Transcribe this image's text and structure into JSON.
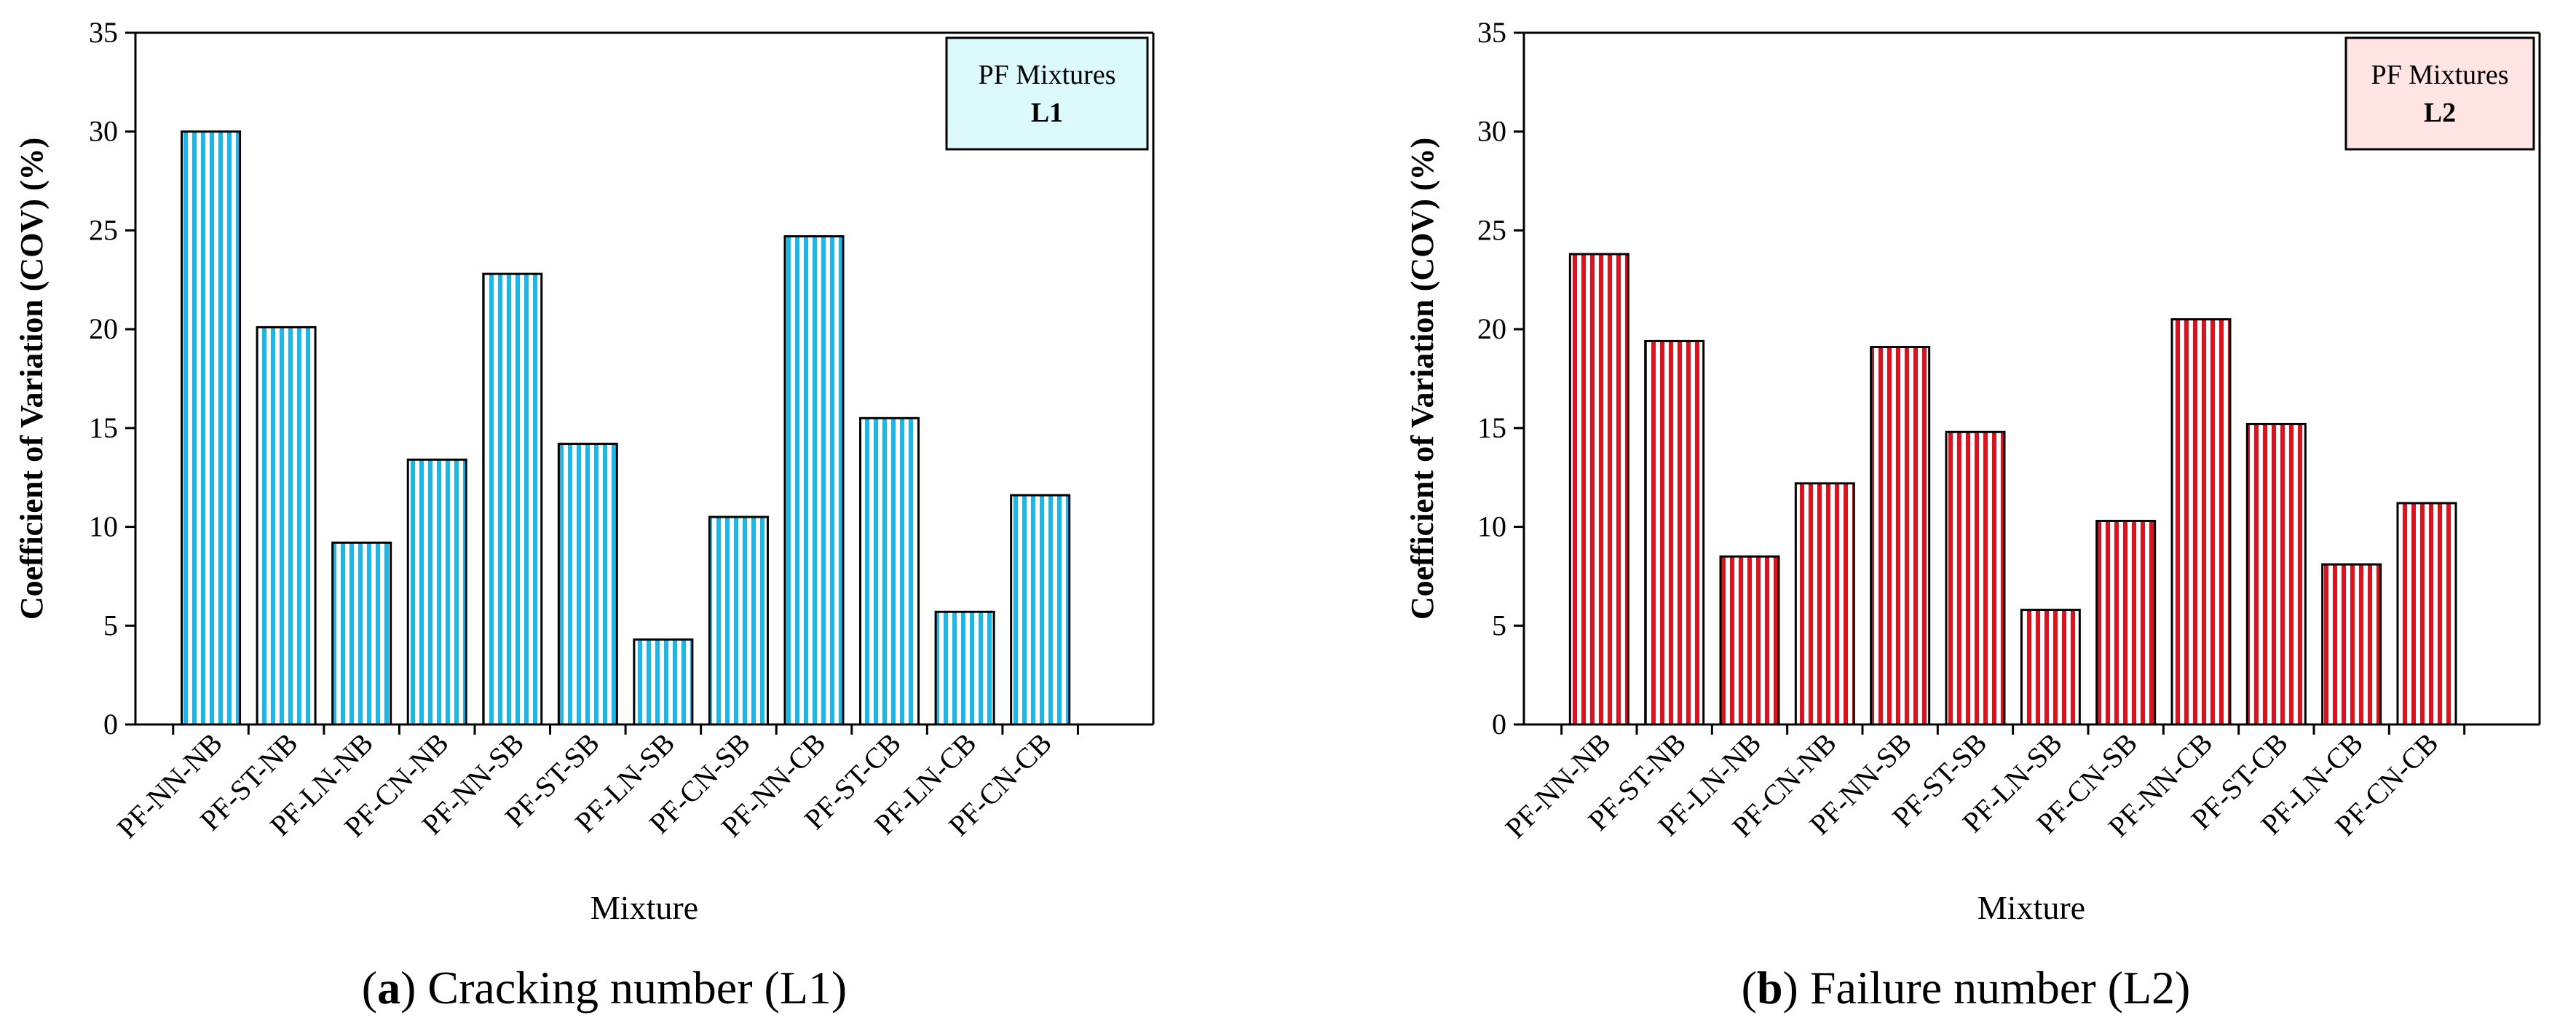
{
  "chart_data": [
    {
      "type": "bar",
      "panel": "a",
      "caption_letter": "a",
      "caption_text": "Cracking number (L1)",
      "legend_title": "PF Mixtures",
      "legend_label": "L1",
      "xlabel": "Mixture",
      "ylabel": "Coefficient of Variation (COV) (%)",
      "ylim": [
        0,
        35
      ],
      "yticks": [
        0,
        5,
        10,
        15,
        20,
        25,
        30,
        35
      ],
      "categories": [
        "PF-NN-NB",
        "PF-ST-NB",
        "PF-LN-NB",
        "PF-CN-NB",
        "PF-NN-SB",
        "PF-ST-SB",
        "PF-LN-SB",
        "PF-CN-SB",
        "PF-NN-CB",
        "PF-ST-CB",
        "PF-LN-CB",
        "PF-CN-CB"
      ],
      "values": [
        30.0,
        20.1,
        9.2,
        13.4,
        22.8,
        14.2,
        4.3,
        10.5,
        24.7,
        15.5,
        5.7,
        11.6
      ],
      "bar_color": "#1ab8ea",
      "legend_bg": "#dcfafc"
    },
    {
      "type": "bar",
      "panel": "b",
      "caption_letter": "b",
      "caption_text": "Failure number (L2)",
      "legend_title": "PF Mixtures",
      "legend_label": "L2",
      "xlabel": "Mixture",
      "ylabel": "Coefficient of Variation (COV) (%)",
      "ylim": [
        0,
        35
      ],
      "yticks": [
        0,
        5,
        10,
        15,
        20,
        25,
        30,
        35
      ],
      "categories": [
        "PF-NN-NB",
        "PF-ST-NB",
        "PF-LN-NB",
        "PF-CN-NB",
        "PF-NN-SB",
        "PF-ST-SB",
        "PF-LN-SB",
        "PF-CN-SB",
        "PF-NN-CB",
        "PF-ST-CB",
        "PF-LN-CB",
        "PF-CN-CB"
      ],
      "values": [
        23.8,
        19.4,
        8.5,
        12.2,
        19.1,
        14.8,
        5.8,
        10.3,
        20.5,
        15.2,
        8.1,
        11.2
      ],
      "bar_color": "#e0101c",
      "legend_bg": "#ffe4e4"
    }
  ]
}
